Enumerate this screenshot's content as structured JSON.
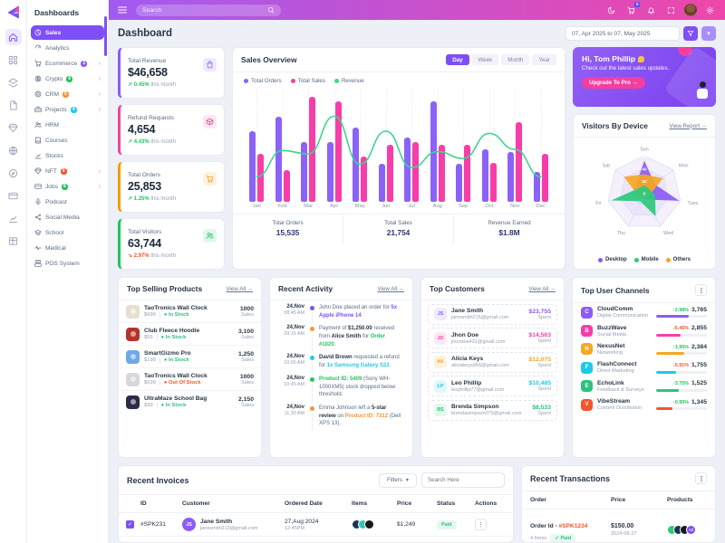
{
  "brand": {
    "name": "Dashboards"
  },
  "topbar": {
    "search_placeholder": "Search",
    "cart_badge": "5",
    "icons": [
      "theme-toggle",
      "cart",
      "bell",
      "fullscreen",
      "avatar",
      "gear"
    ]
  },
  "iconrail": [
    "home",
    "grid",
    "layers",
    "file",
    "gem",
    "globe",
    "compass",
    "card",
    "chart",
    "table"
  ],
  "sidebar": {
    "items": [
      {
        "label": "Sales",
        "icon": "pie",
        "active": true
      },
      {
        "label": "Analytics",
        "icon": "gauge"
      },
      {
        "label": "Ecommerce",
        "icon": "cart",
        "badge": "3",
        "badge_color": "#8b5cf6",
        "arrow": true
      },
      {
        "label": "Crypto",
        "icon": "btc",
        "badge": "6",
        "badge_color": "#22c55e",
        "arrow": true
      },
      {
        "label": "CRM",
        "icon": "target",
        "badge": "5",
        "badge_color": "#fb9337",
        "arrow": true
      },
      {
        "label": "Projects",
        "icon": "briefcase",
        "badge": "4",
        "badge_color": "#1fc9e8",
        "arrow": true
      },
      {
        "label": "HRM",
        "icon": "users"
      },
      {
        "label": "Courses",
        "icon": "book"
      },
      {
        "label": "Stocks",
        "icon": "chart"
      },
      {
        "label": "NFT",
        "icon": "gem",
        "badge": "6",
        "badge_color": "#f4552c",
        "arrow": true
      },
      {
        "label": "Jobs",
        "icon": "card",
        "badge": "8",
        "badge_color": "#22c55e",
        "arrow": true
      },
      {
        "label": "Podcast",
        "icon": "mic"
      },
      {
        "label": "Social Media",
        "icon": "share"
      },
      {
        "label": "School",
        "icon": "school"
      },
      {
        "label": "Medical",
        "icon": "pulse"
      },
      {
        "label": "POS System",
        "icon": "pos"
      }
    ]
  },
  "page": {
    "title": "Dashboard",
    "date_range": "07, Apr 2025 to 07, May 2025"
  },
  "stats": [
    {
      "label": "Total Revenue",
      "value": "$46,658",
      "change": "0.45%",
      "direction": "up",
      "note": "this month",
      "accent": "#8b5cf6",
      "icon": "bag"
    },
    {
      "label": "Refund Requests",
      "value": "4,654",
      "change": "4.43%",
      "direction": "up",
      "note": "this month",
      "accent": "#ec4899",
      "icon": "box"
    },
    {
      "label": "Total Orders",
      "value": "25,853",
      "change": "1.25%",
      "direction": "up",
      "note": "this month",
      "accent": "#f59e0b",
      "icon": "cart"
    },
    {
      "label": "Total Visitors",
      "value": "63,744",
      "change": "2.97%",
      "direction": "down",
      "note": "this month",
      "accent": "#22c55e",
      "icon": "users"
    }
  ],
  "sales_overview": {
    "title": "Sales Overview",
    "tabs": [
      "Day",
      "Week",
      "Month",
      "Year"
    ],
    "active_tab": "Day",
    "footer": [
      {
        "label": "Total Orders",
        "value": "15,535"
      },
      {
        "label": "Total Sales",
        "value": "21,754"
      },
      {
        "label": "Revenue Earned",
        "value": "$1.8M"
      }
    ]
  },
  "chart_data": [
    {
      "type": "bar",
      "title": "Sales Overview",
      "categories": [
        "Jan",
        "Feb",
        "Mar",
        "Apr",
        "May",
        "Jun",
        "Jul",
        "Aug",
        "Sep",
        "Oct",
        "Nov",
        "Dec"
      ],
      "series": [
        {
          "name": "Total Orders",
          "type": "bar",
          "color": "#8b62f8",
          "values": [
            62,
            75,
            52,
            52,
            65,
            33,
            56,
            88,
            33,
            46,
            44,
            26
          ]
        },
        {
          "name": "Total Sales",
          "type": "bar",
          "color": "#f73ea8",
          "values": [
            42,
            28,
            92,
            88,
            40,
            50,
            52,
            50,
            50,
            34,
            70,
            42
          ]
        },
        {
          "name": "Revenue",
          "type": "line",
          "color": "#3dd68c",
          "values": [
            22,
            45,
            42,
            75,
            33,
            62,
            30,
            44,
            38,
            60,
            46,
            22
          ]
        }
      ],
      "ylim": [
        0,
        100
      ],
      "grid": "dotted-vertical",
      "legend_position": "top-left"
    },
    {
      "type": "radar",
      "title": "Visitors By Device",
      "categories": [
        "Sun",
        "Mon",
        "Tues",
        "Wed",
        "Thu",
        "Fri",
        "Sat"
      ],
      "rings": [
        0,
        20,
        40,
        60
      ],
      "max": 60,
      "series": [
        {
          "name": "Desktop",
          "color": "#8b5cf6",
          "values": [
            52,
            22,
            58,
            12,
            10,
            15,
            18
          ]
        },
        {
          "name": "Others",
          "color": "#f6a723",
          "values": [
            30,
            38,
            10,
            8,
            10,
            12,
            42
          ]
        },
        {
          "name": "Mobile",
          "color": "#2dc97e",
          "values": [
            12,
            10,
            18,
            42,
            15,
            55,
            12
          ]
        }
      ],
      "legend_order": [
        "Desktop",
        "Mobile",
        "Others"
      ],
      "legend_colors": [
        "#8b5cf6",
        "#2dc97e",
        "#f6a723"
      ]
    }
  ],
  "promo": {
    "greeting": "Hi, Tom Phillip",
    "message": "Check out the latest sales updates.",
    "cta": "Upgrade To Pro →"
  },
  "visitors": {
    "title": "Visitors By Device",
    "link": "View Report →"
  },
  "products": {
    "title": "Top Selling Products",
    "link": "View All →",
    "unit": "Sales",
    "items": [
      {
        "name": "TaoTronics Wall Clock",
        "price": "$699",
        "status": "In Stock",
        "status_color": "#2fc180",
        "sales": "1000",
        "thumb": "#e6dfd0"
      },
      {
        "name": "Club Fleece Hoodie",
        "price": "$55",
        "status": "In Stock",
        "status_color": "#2fc180",
        "sales": "3,100",
        "thumb": "#b3342e"
      },
      {
        "name": "SmartGizmo Pro",
        "price": "$199",
        "status": "In Stock",
        "status_color": "#2fc180",
        "sales": "1,250",
        "thumb": "#6ea8e8"
      },
      {
        "name": "TaoTronics Wall Clock",
        "price": "$699",
        "status": "Out Of Stock",
        "status_color": "#f4552c",
        "sales": "1000",
        "thumb": "#d8d8dc"
      },
      {
        "name": "UltraMaze School Bag",
        "price": "$99",
        "status": "In Stock",
        "status_color": "#2fc180",
        "sales": "2,150",
        "thumb": "#2a2b45"
      }
    ]
  },
  "activity": {
    "title": "Recent Activity",
    "link": "View All →",
    "items": [
      {
        "date": "24,Nov",
        "time": "08:45 AM",
        "dot": "#7e4ff6",
        "parts": [
          {
            "t": "John Doe placed an order for "
          },
          {
            "t": "5x Apple iPhone 14",
            "c": "#7e4ff6"
          }
        ]
      },
      {
        "date": "24,Nov",
        "time": "09:15 AM",
        "dot": "#fb9337",
        "parts": [
          {
            "t": "Payment of "
          },
          {
            "t": "$1,250.00",
            "b": true
          },
          {
            "t": " received from "
          },
          {
            "t": "Alice Smith",
            "b": true
          },
          {
            "t": " for "
          },
          {
            "t": "Order #1020",
            "c": "#22c55e"
          },
          {
            "t": "."
          }
        ]
      },
      {
        "date": "24,Nov",
        "time": "10:00 AM",
        "dot": "#1fc9e8",
        "parts": [
          {
            "t": "David Brown",
            "b": true
          },
          {
            "t": " requested a refund for "
          },
          {
            "t": "1x Samsung Galaxy S22",
            "c": "#1fc9e8"
          },
          {
            "t": "."
          }
        ]
      },
      {
        "date": "24,Nov",
        "time": "10:45 AM",
        "dot": "#22c55e",
        "parts": [
          {
            "t": "Product ID: 5409",
            "c": "#22c55e"
          },
          {
            "t": " (Sony WH-1000XM5) stock dropped below threshold."
          }
        ]
      },
      {
        "date": "24,Nov",
        "time": "11:30 AM",
        "dot": "#fb9337",
        "parts": [
          {
            "t": "Emma Johnson left a "
          },
          {
            "t": "5-star review",
            "b": true
          },
          {
            "t": " on "
          },
          {
            "t": "Product ID: 7312",
            "c": "#fb9337"
          },
          {
            "t": " (Dell XPS 13)."
          }
        ]
      }
    ]
  },
  "customers": {
    "title": "Top Customers",
    "link": "View All →",
    "unit": "Spent",
    "items": [
      {
        "initials": "JS",
        "name": "Jane Smith",
        "email": "janesmith215@gmail.com",
        "amount": "$23,755",
        "color": "#8b5cf6",
        "tint": "#efeafe"
      },
      {
        "initials": "JD",
        "name": "Jhon Doe",
        "email": "jhondoe431@gmail.com",
        "amount": "$14,563",
        "color": "#f73ea8",
        "tint": "#fde8f4"
      },
      {
        "initials": "AK",
        "name": "Alicia Keys",
        "email": "aliciakeys966@gmail.com",
        "amount": "$12,075",
        "color": "#f6a723",
        "tint": "#fef2dd"
      },
      {
        "initials": "LP",
        "name": "Leo Phillip",
        "email": "leophillip77@gmail.com",
        "amount": "$10,485",
        "color": "#1fc9e8",
        "tint": "#e0f7fd"
      },
      {
        "initials": "BS",
        "name": "Brenda Simpson",
        "email": "brendasimpson075@gmail.com",
        "amount": "$8,533",
        "color": "#2fc180",
        "tint": "#e4f8ec"
      }
    ]
  },
  "channels": {
    "title": "Top User Channels",
    "items": [
      {
        "name": "CloudComm",
        "category": "Digital Communication",
        "change": "2.98%",
        "direction": "up",
        "value": "3,765",
        "color": "#8b5cf6",
        "fill": 65
      },
      {
        "name": "BuzzWave",
        "category": "Social Media",
        "change": "6.45%",
        "direction": "down",
        "value": "2,855",
        "color": "#f73ea8",
        "fill": 48
      },
      {
        "name": "NexusNet",
        "category": "Networking",
        "change": "1.95%",
        "direction": "up",
        "value": "2,384",
        "color": "#f6a723",
        "fill": 55
      },
      {
        "name": "FlashConnect",
        "category": "Direct Marketing",
        "change": "5.91%",
        "direction": "down",
        "value": "1,755",
        "color": "#1fc9e8",
        "fill": 40
      },
      {
        "name": "EchoLink",
        "category": "Feedback & Surveys",
        "change": "3.75%",
        "direction": "up",
        "value": "1,525",
        "color": "#2fc180",
        "fill": 44
      },
      {
        "name": "VibeStream",
        "category": "Content Distribution",
        "change": "0.95%",
        "direction": "up",
        "value": "1,345",
        "color": "#f4552c",
        "fill": 32
      }
    ]
  },
  "invoices": {
    "title": "Recent Invoices",
    "filters_label": "Filters",
    "search_placeholder": "Search Here",
    "columns": [
      "ID",
      "Customer",
      "Ordered Date",
      "Items",
      "Price",
      "Status",
      "Actions"
    ],
    "rows": [
      {
        "checked": true,
        "id": "#SPK231",
        "customer": "Jane Smith",
        "initials": "JS",
        "email": "janesmith213@gmail.com",
        "date": "27,Aug 2024",
        "time": "12:45PM",
        "price": "$1,249",
        "status": "Paid",
        "item_colors": [
          "#1d3354",
          "#35c4b5",
          "#15181d"
        ]
      }
    ]
  },
  "transactions": {
    "title": "Recent Transactions",
    "columns": [
      "Order",
      "Price",
      "Products"
    ],
    "rows": [
      {
        "order_label": "Order Id - ",
        "order_id": "#SPK1234",
        "id_color": "#f4552c",
        "items": "4 Items",
        "status": "✓ Paid",
        "price": "$150.00",
        "date": "2024-08-27",
        "extra": "+2",
        "product_colors": [
          "#2dc97e",
          "#16324f",
          "#15181d"
        ]
      }
    ]
  }
}
